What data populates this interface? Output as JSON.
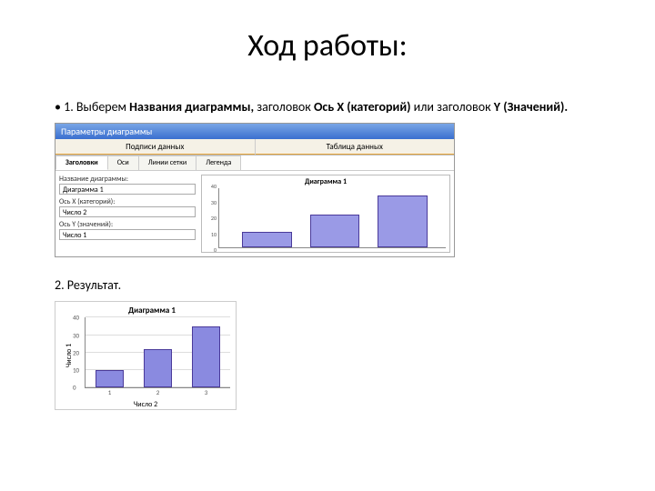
{
  "title": "Ход работы:",
  "step1": {
    "bullet": "• 1. Выберем ",
    "bold1": "Названия диаграммы, ",
    "mid1": "заголовок ",
    "bold2": "Ось X (категорий) ",
    "mid2": "или заголовок ",
    "bold3": "Y (Значений)."
  },
  "dialog": {
    "titlebar": "Параметры диаграммы",
    "toptabs": [
      "Подписи данных",
      "Таблица данных"
    ],
    "subtabs": [
      "Заголовки",
      "Оси",
      "Линии сетки",
      "Легенда"
    ],
    "active_subtab": 0,
    "fields": {
      "name_label": "Название диаграммы:",
      "name_value": "Диаграмма 1",
      "x_label": "Ось X (категорий):",
      "x_value": "Число 2",
      "y_label": "Ось Y (значений):",
      "y_value": "Число 1"
    },
    "preview": {
      "title": "Диаграмма 1",
      "ylim": [
        0,
        40
      ],
      "yticks": [
        0,
        10,
        20,
        30,
        40
      ],
      "bars": [
        {
          "x_pct": 10,
          "w_pct": 22,
          "h_frac": 0.26,
          "color": "#9a9ae6"
        },
        {
          "x_pct": 40,
          "w_pct": 22,
          "h_frac": 0.55,
          "color": "#9a9ae6"
        },
        {
          "x_pct": 70,
          "w_pct": 22,
          "h_frac": 0.88,
          "color": "#9a9ae6"
        }
      ]
    }
  },
  "step2": "2. Результат.",
  "result_chart": {
    "title": "Диаграмма 1",
    "ylabel": "Число 1",
    "xlabel": "Число 2",
    "ylim": [
      0,
      40
    ],
    "yticks": [
      0,
      10,
      20,
      30,
      40
    ],
    "categories": [
      "1",
      "2",
      "3"
    ],
    "values": [
      10,
      22,
      35
    ],
    "bar_color": "#8a8ae0",
    "bar_border": "#4a3a9a",
    "grid_color": "#dddddd",
    "axis_color": "#888888",
    "background": "#ffffff"
  }
}
